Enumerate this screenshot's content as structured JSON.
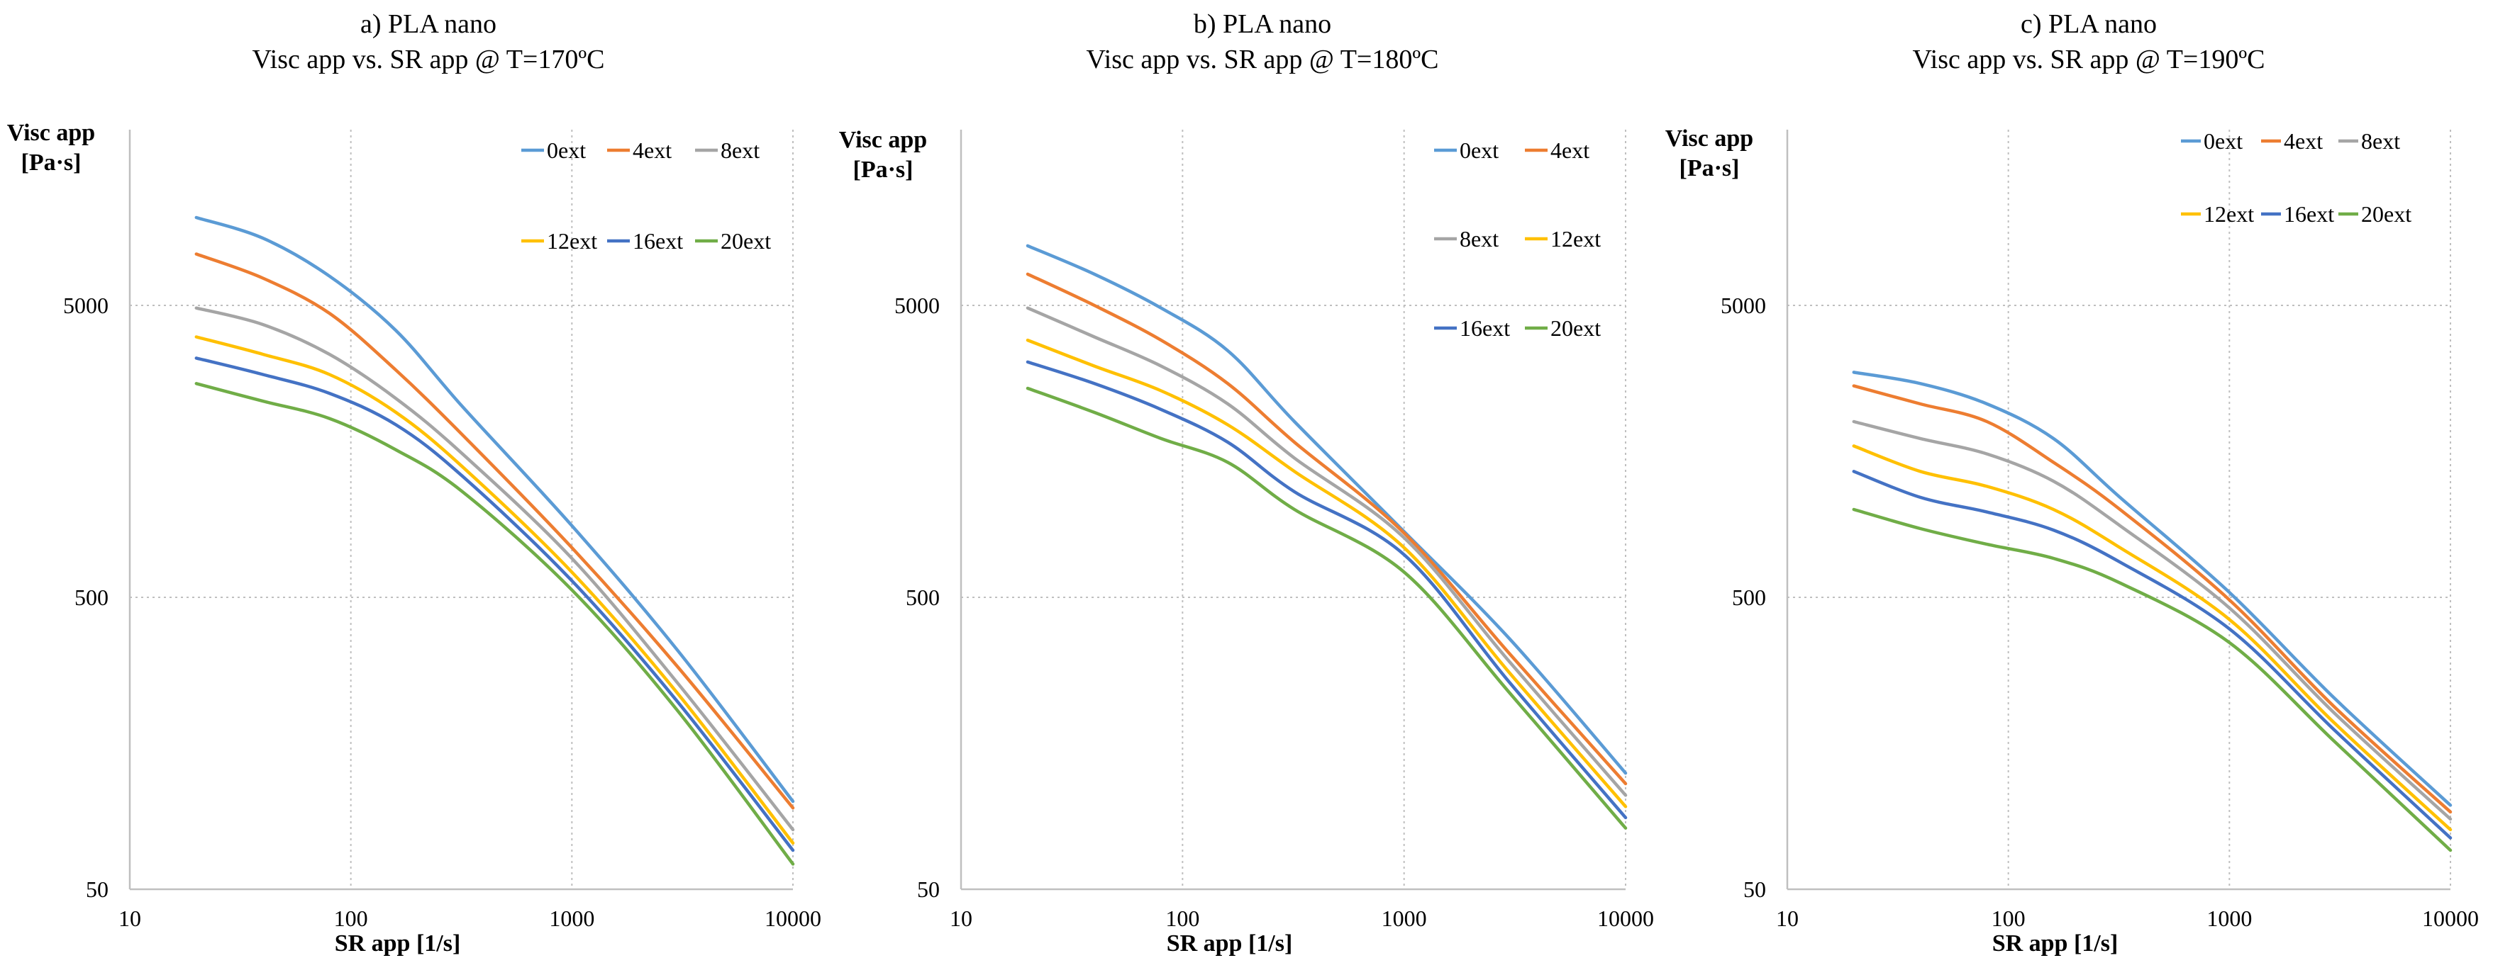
{
  "chart_data": [
    {
      "type": "line",
      "title": "a) PLA nano",
      "subtitle": "Visc app vs. SR app @ T=170ºC",
      "xlabel": "SR app [1/s]",
      "ylabel": [
        "Visc app",
        "[Pa·s]"
      ],
      "xscale": "log",
      "yscale": "log",
      "xlim": [
        10,
        10000
      ],
      "ylim": [
        50,
        20000
      ],
      "xticks": [
        "10",
        "100",
        "1000",
        "10000"
      ],
      "yticks": [
        "50",
        "500",
        "5000"
      ],
      "grid": true,
      "legend": {
        "placement": "top-right",
        "rows": [
          [
            "0ext",
            "4ext",
            "8ext"
          ],
          [
            "12ext",
            "16ext",
            "20ext"
          ]
        ]
      },
      "series": [
        {
          "name": "0ext",
          "color": "#5B9BD5",
          "x": [
            20,
            40,
            80,
            160,
            320,
            1000,
            3000,
            10000
          ],
          "y": [
            10000,
            8500,
            6300,
            4100,
            2250,
            880,
            330,
            100
          ]
        },
        {
          "name": "4ext",
          "color": "#ED7D31",
          "x": [
            20,
            40,
            80,
            160,
            320,
            1000,
            3000,
            10000
          ],
          "y": [
            7500,
            6200,
            4700,
            3000,
            1800,
            740,
            290,
            95
          ]
        },
        {
          "name": "8ext",
          "color": "#A5A5A5",
          "x": [
            20,
            40,
            80,
            160,
            320,
            1000,
            3000,
            10000
          ],
          "y": [
            4900,
            4300,
            3400,
            2400,
            1550,
            680,
            255,
            80
          ]
        },
        {
          "name": "12ext",
          "color": "#FFC000",
          "x": [
            20,
            40,
            80,
            160,
            320,
            1000,
            3000,
            10000
          ],
          "y": [
            3900,
            3400,
            2900,
            2150,
            1400,
            610,
            235,
            72
          ]
        },
        {
          "name": "16ext",
          "color": "#4472C4",
          "x": [
            20,
            40,
            80,
            160,
            320,
            1000,
            3000,
            10000
          ],
          "y": [
            3300,
            2900,
            2500,
            1950,
            1300,
            570,
            220,
            68
          ]
        },
        {
          "name": "20ext",
          "color": "#70AD47",
          "x": [
            20,
            40,
            80,
            160,
            320,
            1000,
            3000,
            10000
          ],
          "y": [
            2700,
            2350,
            2050,
            1600,
            1150,
            530,
            205,
            61
          ]
        }
      ]
    },
    {
      "type": "line",
      "title": "b) PLA nano",
      "subtitle": "Visc app vs. SR app @ T=180ºC",
      "xlabel": "SR app [1/s]",
      "ylabel": [
        "Visc app",
        "[Pa·s]"
      ],
      "xscale": "log",
      "yscale": "log",
      "xlim": [
        10,
        10000
      ],
      "ylim": [
        50,
        20000
      ],
      "xticks": [
        "10",
        "100",
        "1000",
        "10000"
      ],
      "yticks": [
        "50",
        "500",
        "5000"
      ],
      "grid": true,
      "legend": {
        "placement": "top-right",
        "rows": [
          [
            "0ext",
            "4ext"
          ],
          [
            "8ext",
            "12ext"
          ],
          [
            "16ext",
            "20ext"
          ]
        ]
      },
      "series": [
        {
          "name": "0ext",
          "color": "#5B9BD5",
          "x": [
            20,
            40,
            80,
            160,
            320,
            1000,
            3000,
            10000
          ],
          "y": [
            8000,
            6400,
            4900,
            3500,
            2000,
            840,
            360,
            125
          ]
        },
        {
          "name": "4ext",
          "color": "#ED7D31",
          "x": [
            20,
            40,
            80,
            160,
            320,
            1000,
            3000,
            10000
          ],
          "y": [
            6400,
            5000,
            3800,
            2700,
            1700,
            830,
            320,
            115
          ]
        },
        {
          "name": "8ext",
          "color": "#A5A5A5",
          "x": [
            20,
            40,
            80,
            160,
            320,
            1000,
            3000,
            10000
          ],
          "y": [
            4900,
            3900,
            3100,
            2300,
            1500,
            800,
            300,
            105
          ]
        },
        {
          "name": "12ext",
          "color": "#FFC000",
          "x": [
            20,
            40,
            80,
            160,
            320,
            1000,
            3000,
            10000
          ],
          "y": [
            3800,
            3100,
            2550,
            1950,
            1350,
            740,
            275,
            96
          ]
        },
        {
          "name": "16ext",
          "color": "#4472C4",
          "x": [
            20,
            40,
            80,
            160,
            320,
            1000,
            3000,
            10000
          ],
          "y": [
            3200,
            2700,
            2200,
            1700,
            1150,
            700,
            255,
            88
          ]
        },
        {
          "name": "20ext",
          "color": "#70AD47",
          "x": [
            20,
            40,
            80,
            160,
            320,
            1000,
            3000,
            10000
          ],
          "y": [
            2600,
            2150,
            1750,
            1450,
            1000,
            610,
            235,
            81
          ]
        }
      ]
    },
    {
      "type": "line",
      "title": "c) PLA nano",
      "subtitle": "Visc app vs. SR app @ T=190ºC",
      "xlabel": "SR app [1/s]",
      "ylabel": [
        "Visc app",
        "[Pa·s]"
      ],
      "xscale": "log",
      "yscale": "log",
      "xlim": [
        10,
        10000
      ],
      "ylim": [
        50,
        20000
      ],
      "xticks": [
        "10",
        "100",
        "1000",
        "10000"
      ],
      "yticks": [
        "50",
        "500",
        "5000"
      ],
      "grid": true,
      "legend": {
        "placement": "top-right",
        "rows": [
          [
            "0ext",
            "4ext",
            "8ext"
          ],
          [
            "12ext",
            "16ext",
            "20ext"
          ]
        ]
      },
      "series": [
        {
          "name": "0ext",
          "color": "#5B9BD5",
          "x": [
            20,
            40,
            80,
            160,
            320,
            1000,
            3000,
            10000
          ],
          "y": [
            2950,
            2700,
            2300,
            1750,
            1100,
            520,
            225,
            97
          ]
        },
        {
          "name": "4ext",
          "color": "#ED7D31",
          "x": [
            20,
            40,
            80,
            160,
            320,
            1000,
            3000,
            10000
          ],
          "y": [
            2650,
            2300,
            2000,
            1450,
            1000,
            490,
            210,
            92
          ]
        },
        {
          "name": "8ext",
          "color": "#A5A5A5",
          "x": [
            20,
            40,
            80,
            160,
            320,
            1000,
            3000,
            10000
          ],
          "y": [
            2000,
            1750,
            1550,
            1250,
            880,
            460,
            200,
            87
          ]
        },
        {
          "name": "12ext",
          "color": "#FFC000",
          "x": [
            20,
            40,
            80,
            160,
            320,
            1000,
            3000,
            10000
          ],
          "y": [
            1650,
            1350,
            1200,
            1000,
            740,
            420,
            185,
            80
          ]
        },
        {
          "name": "16ext",
          "color": "#4472C4",
          "x": [
            20,
            40,
            80,
            160,
            320,
            1000,
            3000,
            10000
          ],
          "y": [
            1350,
            1100,
            980,
            850,
            660,
            390,
            175,
            75
          ]
        },
        {
          "name": "20ext",
          "color": "#70AD47",
          "x": [
            20,
            40,
            80,
            160,
            320,
            1000,
            3000,
            10000
          ],
          "y": [
            1000,
            860,
            760,
            680,
            560,
            350,
            160,
            68
          ]
        }
      ]
    }
  ]
}
